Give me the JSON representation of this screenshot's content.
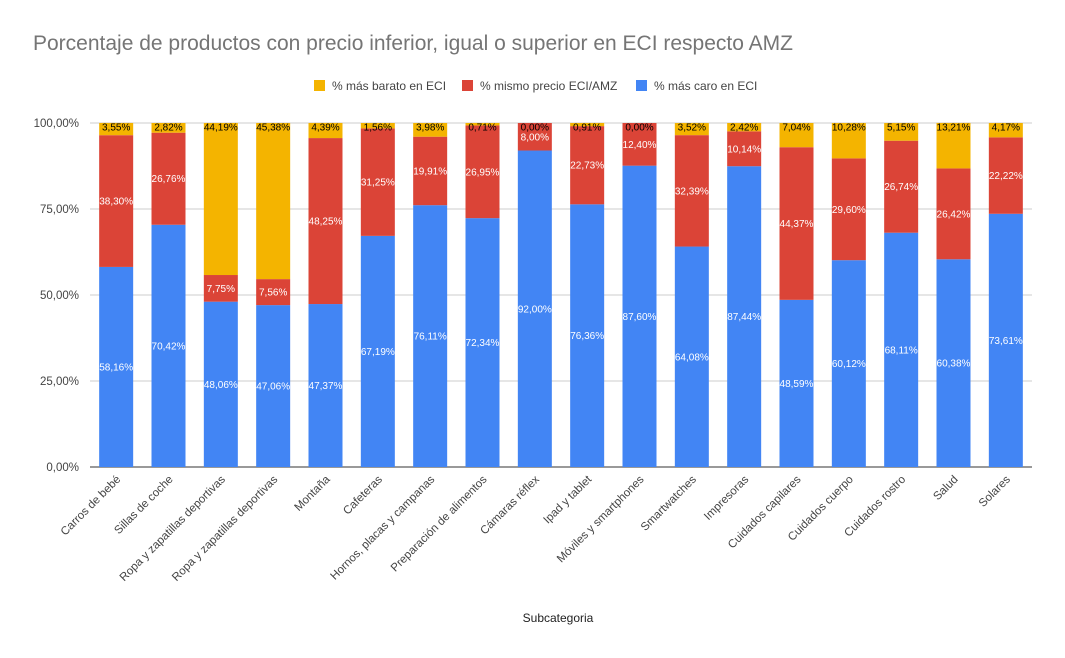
{
  "chart_data": {
    "type": "bar",
    "stacked": true,
    "title": "Porcentaje de productos con precio inferior, igual o superior en ECI respecto AMZ",
    "xlabel": "Subcategoria",
    "ylabel": "",
    "ylim": [
      0,
      100
    ],
    "yticks": [
      "0,00%",
      "25,00%",
      "50,00%",
      "75,00%",
      "100,00%"
    ],
    "legend_position": "top",
    "categories": [
      "Carros de bebé",
      "Sillas de coche",
      "Ropa y zapatillas deportivas",
      "Ropa y zapatillas deportivas",
      "Montaña",
      "Cafeteras",
      "Hornos, placas y campanas",
      "Preparación de alimentos",
      "Cámaras réflex",
      "Ipad y tablet",
      "Móviles y smartphones",
      "Smartwatches",
      "Impresoras",
      "Cuidados capilares",
      "Cuidados cuerpo",
      "Cuidados rostro",
      "Salud",
      "Solares"
    ],
    "series": [
      {
        "name": "% más caro en ECI",
        "color": "#4285f4",
        "label_color": "#ffffff",
        "values": [
          58.16,
          70.42,
          48.06,
          47.06,
          47.37,
          67.19,
          76.11,
          72.34,
          92.0,
          76.36,
          87.6,
          64.08,
          87.44,
          48.59,
          60.12,
          68.11,
          60.38,
          73.61
        ],
        "labels": [
          "58,16%",
          "70,42%",
          "48,06%",
          "47,06%",
          "47,37%",
          "67,19%",
          "76,11%",
          "72,34%",
          "92,00%",
          "76,36%",
          "87,60%",
          "64,08%",
          "87,44%",
          "48,59%",
          "60,12%",
          "68,11%",
          "60,38%",
          "73,61%"
        ]
      },
      {
        "name": "% mismo precio ECI/AMZ",
        "color": "#db4437",
        "label_color": "#ffffff",
        "values": [
          38.3,
          26.76,
          7.75,
          7.56,
          48.25,
          31.25,
          19.91,
          26.95,
          8.0,
          22.73,
          12.4,
          32.39,
          10.14,
          44.37,
          29.6,
          26.74,
          26.42,
          22.22
        ],
        "labels": [
          "38,30%",
          "26,76%",
          "7,75%",
          "7,56%",
          "48,25%",
          "31,25%",
          "19,91%",
          "26,95%",
          "8,00%",
          "22,73%",
          "12,40%",
          "32,39%",
          "10,14%",
          "44,37%",
          "29,60%",
          "26,74%",
          "26,42%",
          "22,22%"
        ]
      },
      {
        "name": "% más barato en ECI",
        "color": "#f4b400",
        "label_color": "#000000",
        "values": [
          3.55,
          2.82,
          44.19,
          45.38,
          4.39,
          1.56,
          3.98,
          0.71,
          0.0,
          0.91,
          0.0,
          3.52,
          2.42,
          7.04,
          10.28,
          5.15,
          13.21,
          4.17
        ],
        "labels": [
          "3,55%",
          "2,82%",
          "44,19%",
          "45,38%",
          "4,39%",
          "1,56%",
          "3,98%",
          "0,71%",
          "0,00%",
          "0,91%",
          "0,00%",
          "3,52%",
          "2,42%",
          "7,04%",
          "10,28%",
          "5,15%",
          "13,21%",
          "4,17%"
        ]
      }
    ],
    "legend_order": [
      "% más barato en ECI",
      "% mismo precio ECI/AMZ",
      "% más caro en ECI"
    ],
    "colors": {
      "grid": "#cccccc",
      "axis": "#333333"
    }
  }
}
